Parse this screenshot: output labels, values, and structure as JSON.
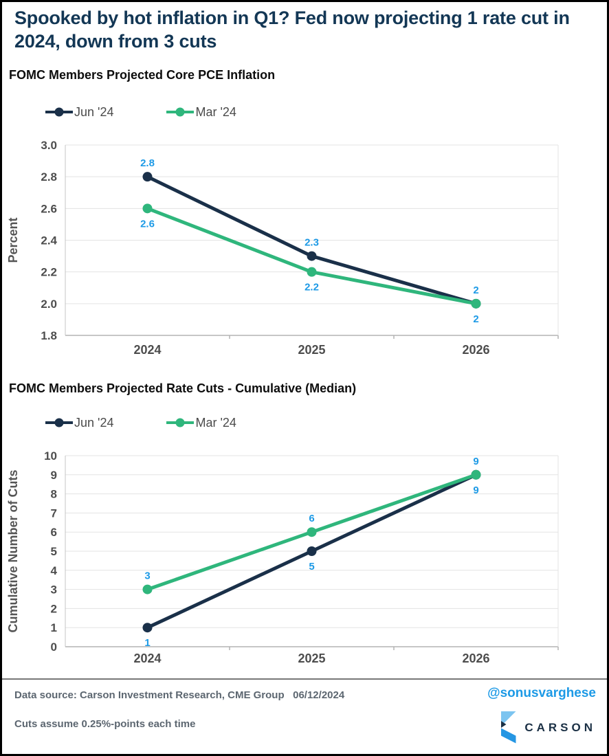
{
  "header": {
    "title": "Spooked by hot inflation in Q1? Fed now projecting 1 rate cut in 2024, down from 3 cuts"
  },
  "colors": {
    "title_navy": "#133755",
    "series_navy": "#1a3049",
    "series_green": "#2fb67c",
    "label_blue": "#1d9ae6",
    "handle_blue": "#1d9ae6",
    "logo_light_blue": "#7cc4f0",
    "logo_bright_blue": "#2596e3",
    "logo_navy": "#1b3045"
  },
  "chart_data": [
    {
      "type": "line",
      "title": "FOMC Members Projected Core PCE Inflation",
      "ylabel": "Percent",
      "xlabel": "",
      "categories": [
        "2024",
        "2025",
        "2026"
      ],
      "ylim": [
        1.8,
        3.0
      ],
      "ytick_step": 0.2,
      "ytick_decimals": 1,
      "grid": true,
      "legend_position": "top-left",
      "series": [
        {
          "name": "Jun '24",
          "color": "#1a3049",
          "values": [
            2.8,
            2.3,
            2
          ],
          "labels": [
            "2.8",
            "2.3",
            "2"
          ],
          "label_side": "above"
        },
        {
          "name": "Mar '24",
          "color": "#2fb67c",
          "values": [
            2.6,
            2.2,
            2
          ],
          "labels": [
            "2.6",
            "2.2",
            "2"
          ],
          "label_side": "below"
        }
      ]
    },
    {
      "type": "line",
      "title": "FOMC Members Projected Rate Cuts - Cumulative (Median)",
      "ylabel": "Cumulative Number of Cuts",
      "xlabel": "",
      "categories": [
        "2024",
        "2025",
        "2026"
      ],
      "ylim": [
        0,
        10
      ],
      "ytick_step": 1,
      "ytick_decimals": 0,
      "grid": true,
      "legend_position": "top-left",
      "series": [
        {
          "name": "Jun '24",
          "color": "#1a3049",
          "values": [
            1,
            5,
            9
          ],
          "labels": [
            "1",
            "5",
            "9"
          ],
          "label_side": "below"
        },
        {
          "name": "Mar '24",
          "color": "#2fb67c",
          "values": [
            3,
            6,
            9
          ],
          "labels": [
            "3",
            "6",
            "9"
          ],
          "label_side": "above"
        }
      ]
    }
  ],
  "footer": {
    "source": "Data source: Carson Investment Research, CME Group   06/12/2024",
    "note": "Cuts assume 0.25%-points each time",
    "handle": "@sonusvarghese",
    "brand": "CARSON"
  }
}
